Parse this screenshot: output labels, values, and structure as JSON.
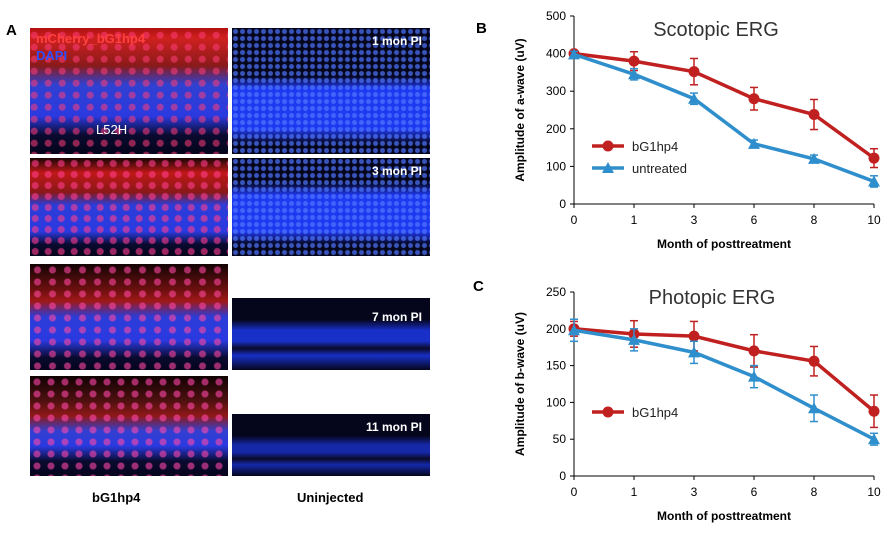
{
  "panels": {
    "a_letter": "A",
    "b_letter": "B",
    "c_letter": "C"
  },
  "micrographs": {
    "legend_mcherry": "mCherry_bG1hp4",
    "legend_dapi": "DAPI",
    "cell_label": "L52H",
    "timepoints": [
      "1 mon PI",
      "3 mon PI",
      "7 mon PI",
      "11 mon PI"
    ],
    "col_treated": "bG1hp4",
    "col_uninjected": "Uninjected",
    "colors": {
      "nuclei": "#1e3cff",
      "mcherry": "#ff2020",
      "background": "#05051c"
    }
  },
  "chart_data": [
    {
      "type": "line",
      "title": "Scotopic ERG",
      "xlabel": "Month of posttreatment",
      "ylabel": "Amplitude of a-wave (uV)",
      "categories": [
        "0",
        "1",
        "3",
        "6",
        "8",
        "10"
      ],
      "ylim": [
        0,
        500
      ],
      "yticks": [
        0,
        100,
        200,
        300,
        400,
        500
      ],
      "series": [
        {
          "name": "bG1hp4",
          "color": "#c0201f",
          "marker": "circle",
          "values": [
            400,
            380,
            352,
            280,
            238,
            122
          ],
          "errors": [
            8,
            25,
            35,
            30,
            40,
            25
          ]
        },
        {
          "name": "untreated",
          "color": "#2f8fcc",
          "marker": "triangle",
          "values": [
            398,
            345,
            280,
            160,
            120,
            60
          ],
          "errors": [
            8,
            15,
            15,
            10,
            10,
            15
          ]
        }
      ],
      "legend": "left"
    },
    {
      "type": "line",
      "title": "Photopic ERG",
      "xlabel": "Month of posttreatment",
      "ylabel": "Amplitude of b-wave (uV)",
      "categories": [
        "0",
        "1",
        "3",
        "6",
        "8",
        "10"
      ],
      "ylim": [
        0,
        250
      ],
      "yticks": [
        0,
        50,
        100,
        150,
        200,
        250
      ],
      "series": [
        {
          "name": "bG1hp4",
          "color": "#c0201f",
          "marker": "circle",
          "values": [
            200,
            193,
            190,
            170,
            156,
            88
          ],
          "errors": [
            10,
            18,
            20,
            22,
            20,
            22
          ]
        },
        {
          "name": "",
          "color": "#2f8fcc",
          "marker": "triangle",
          "values": [
            198,
            185,
            168,
            135,
            92,
            50
          ],
          "errors": [
            15,
            15,
            15,
            15,
            18,
            8
          ]
        }
      ],
      "legend": "left"
    }
  ]
}
